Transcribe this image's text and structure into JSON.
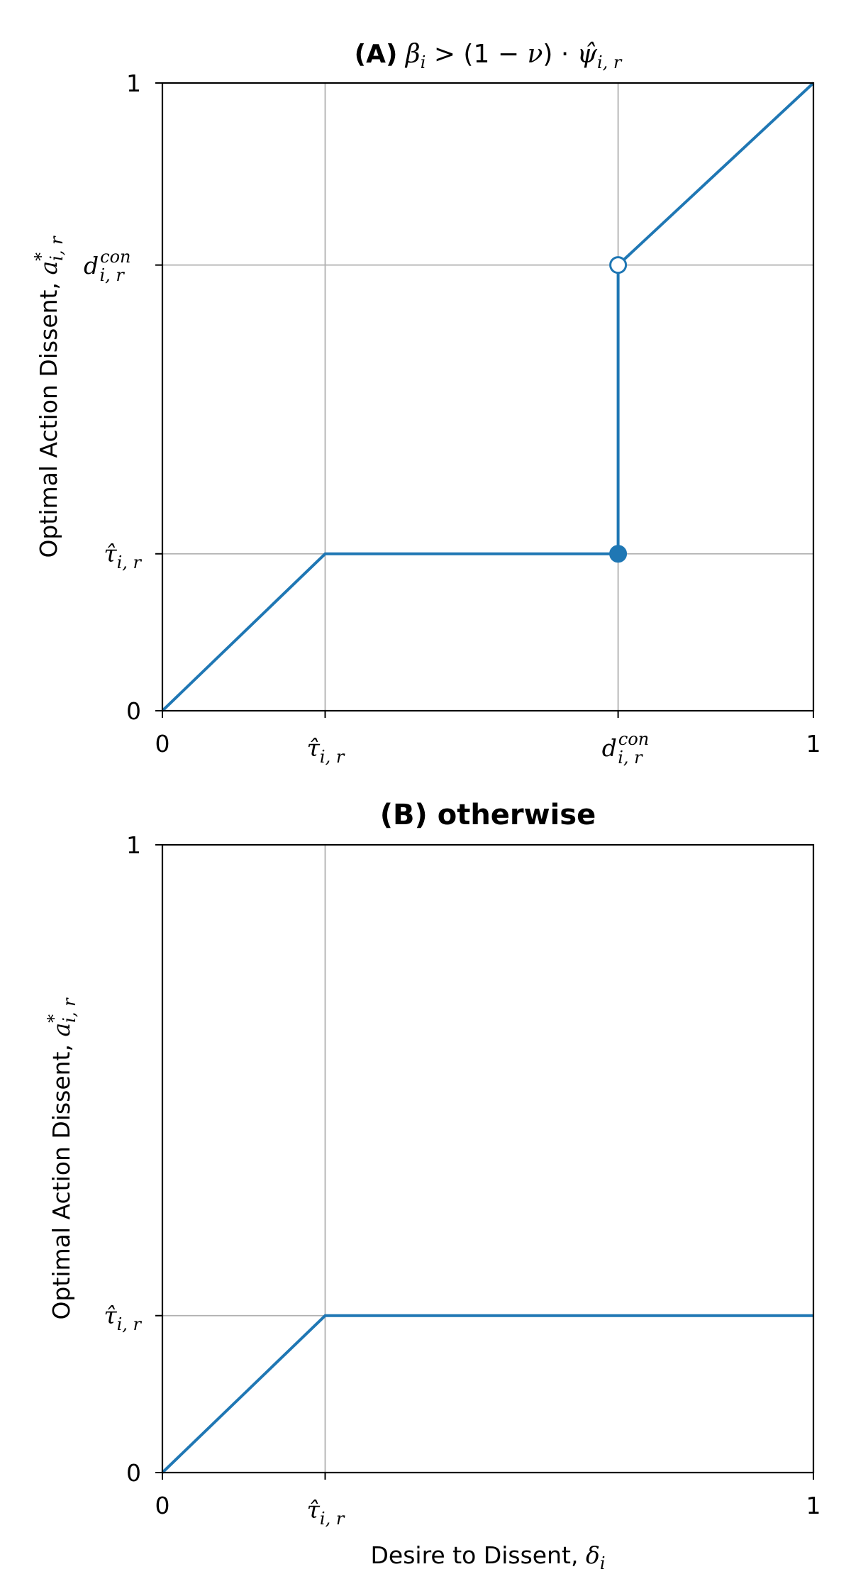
{
  "colors": {
    "line": "#1f77b4",
    "grid": "#b0b0b0",
    "axis": "#000000",
    "text": "#000000"
  },
  "chart_data": [
    {
      "type": "line",
      "panel_label": "(A)",
      "title": "β_i > (1 − ν) · ψ̂_{i,r}",
      "title_parts": {
        "beta": "β",
        "i": "i",
        "gt": " > (1 − ",
        "nu": "ν",
        "close": ") · ",
        "psi": "ψ̂",
        "ir": "i, r"
      },
      "ylabel": "Optimal Action Dissent, a*_{i,r}",
      "ylabel_parts": {
        "text": "Optimal Action Dissent, ",
        "a": "a",
        "star": "*",
        "sub": "i, r"
      },
      "xlabel": "",
      "xlim": [
        0,
        1
      ],
      "ylim": [
        0,
        1
      ],
      "grid": true,
      "x_ticks": [
        {
          "value": 0,
          "label": "0"
        },
        {
          "value": 0.25,
          "label": "τ̂",
          "sub": "i, r"
        },
        {
          "value": 0.7,
          "label": "d",
          "sub": "i, r",
          "sup": "con"
        },
        {
          "value": 1,
          "label": "1"
        }
      ],
      "y_ticks": [
        {
          "value": 0,
          "label": "0"
        },
        {
          "value": 0.25,
          "label": "τ̂",
          "sub": "i, r"
        },
        {
          "value": 0.71,
          "label": "d",
          "sub": "i, r",
          "sup": "con"
        },
        {
          "value": 1,
          "label": "1"
        }
      ],
      "series": [
        {
          "points": [
            [
              0,
              0
            ],
            [
              0.25,
              0.25
            ],
            [
              0.7,
              0.25
            ],
            [
              0.7,
              0.71
            ]
          ]
        },
        {
          "points": [
            [
              0.7,
              0.71
            ],
            [
              1,
              1
            ]
          ]
        }
      ],
      "markers": [
        {
          "x": 0.7,
          "y": 0.25,
          "style": "filled"
        },
        {
          "x": 0.7,
          "y": 0.71,
          "style": "open"
        }
      ]
    },
    {
      "type": "line",
      "panel_label": "",
      "title": "(B) otherwise",
      "ylabel": "Optimal Action Dissent, a*_{i,r}",
      "ylabel_parts": {
        "text": "Optimal Action Dissent, ",
        "a": "a",
        "star": "*",
        "sub": "i, r"
      },
      "xlabel": "Desire to Dissent, δ_i",
      "xlabel_parts": {
        "text": "Desire to Dissent, ",
        "delta": "δ",
        "sub": "i"
      },
      "xlim": [
        0,
        1
      ],
      "ylim": [
        0,
        1
      ],
      "grid": true,
      "x_ticks": [
        {
          "value": 0,
          "label": "0"
        },
        {
          "value": 0.25,
          "label": "τ̂",
          "sub": "i, r"
        },
        {
          "value": 1,
          "label": "1"
        }
      ],
      "y_ticks": [
        {
          "value": 0,
          "label": "0"
        },
        {
          "value": 0.25,
          "label": "τ̂",
          "sub": "i, r"
        },
        {
          "value": 1,
          "label": "1"
        }
      ],
      "series": [
        {
          "points": [
            [
              0,
              0
            ],
            [
              0.25,
              0.25
            ],
            [
              1,
              0.25
            ]
          ]
        }
      ],
      "markers": []
    }
  ]
}
